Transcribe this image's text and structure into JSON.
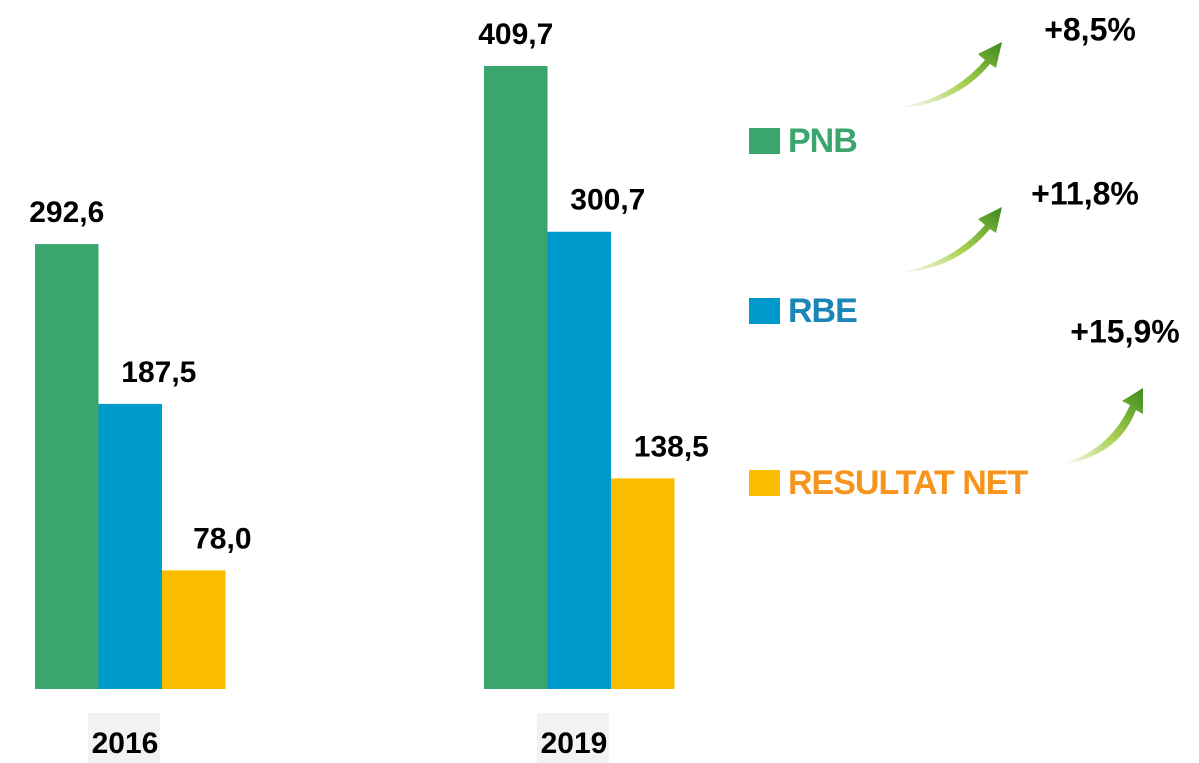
{
  "chart_data": {
    "type": "bar",
    "categories": [
      "2016",
      "2019"
    ],
    "series": [
      {
        "name": "PNB",
        "color": "#3aa66e",
        "values": [
          292.6,
          409.7
        ],
        "value_labels": [
          "292,6",
          "409,7"
        ]
      },
      {
        "name": "RBE",
        "color": "#0099cc",
        "values": [
          187.5,
          300.7
        ],
        "value_labels": [
          "187,5",
          "300,7"
        ]
      },
      {
        "name": "RESULTAT NET",
        "color": "#fbbd00",
        "values": [
          78.0,
          138.5
        ],
        "value_labels": [
          "78,0",
          "138,5"
        ]
      }
    ],
    "legend_colors": [
      "#3aa66e",
      "#1a86b8",
      "#f7941d"
    ],
    "annotations": [
      "+8,5%",
      "+11,8%",
      "+15,9%"
    ],
    "legend": "right"
  }
}
